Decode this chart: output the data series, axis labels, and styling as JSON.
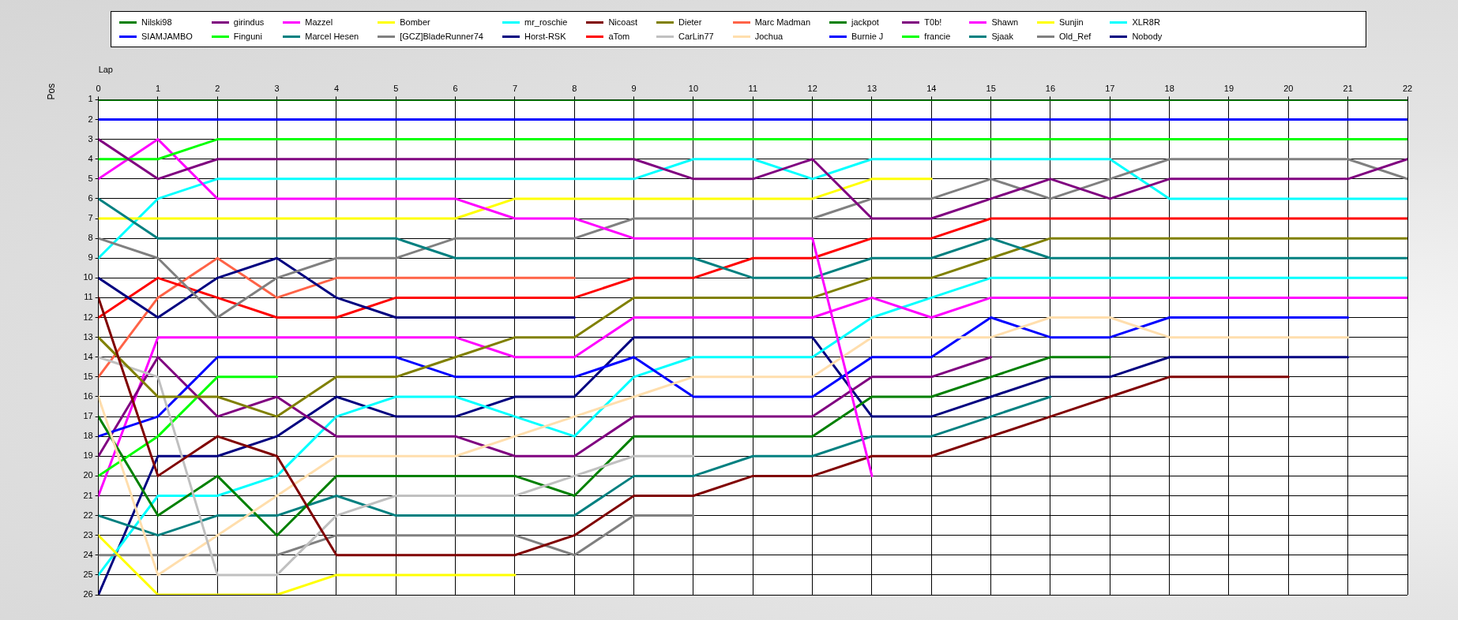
{
  "chart_data": {
    "type": "line",
    "xlabel": "Lap",
    "ylabel": "Pos",
    "x": [
      0,
      1,
      2,
      3,
      4,
      5,
      6,
      7,
      8,
      9,
      10,
      11,
      12,
      13,
      14,
      15,
      16,
      17,
      18,
      19,
      20,
      21,
      22
    ],
    "xlim": [
      0,
      22
    ],
    "xticks": [
      0,
      1,
      2,
      3,
      4,
      5,
      6,
      7,
      8,
      9,
      10,
      11,
      12,
      13,
      14,
      15,
      16,
      17,
      18,
      19,
      20,
      21,
      22
    ],
    "ylim": [
      26,
      1
    ],
    "yticks": [
      1,
      2,
      3,
      4,
      5,
      6,
      7,
      8,
      9,
      10,
      11,
      12,
      13,
      14,
      15,
      16,
      17,
      18,
      19,
      20,
      21,
      22,
      23,
      24,
      25,
      26
    ],
    "grid": true,
    "legend": "top",
    "marker": "none",
    "series": [
      {
        "name": "Nilski98",
        "color": "#008000",
        "values": [
          1,
          1,
          1,
          1,
          1,
          1,
          1,
          1,
          1,
          1,
          1,
          1,
          1,
          1,
          1,
          1,
          1,
          1,
          1,
          1,
          1,
          1,
          1
        ]
      },
      {
        "name": "SIAMJAMBO",
        "color": "#0000ff",
        "values": [
          2,
          2,
          2,
          2,
          2,
          2,
          2,
          2,
          2,
          2,
          2,
          2,
          2,
          2,
          2,
          2,
          2,
          2,
          2,
          2,
          2,
          2,
          2
        ]
      },
      {
        "name": "girindus",
        "color": "#800080",
        "values": [
          3,
          5,
          4,
          4,
          4,
          4,
          4,
          4,
          4,
          4,
          5,
          5,
          4,
          7,
          7,
          6,
          5,
          6,
          5,
          5,
          5,
          5,
          4
        ]
      },
      {
        "name": "Finguni",
        "color": "#00ff00",
        "values": [
          4,
          4,
          3,
          3,
          3,
          3,
          3,
          3,
          3,
          3,
          3,
          3,
          3,
          3,
          3,
          3,
          3,
          3,
          3,
          3,
          3,
          3,
          3
        ]
      },
      {
        "name": "Mazzel",
        "color": "#ff00ff",
        "values": [
          5,
          3,
          6,
          6,
          6,
          6,
          6,
          7,
          7,
          8,
          8,
          8,
          8,
          20,
          null,
          null,
          null,
          null,
          null,
          null,
          null,
          null,
          null
        ]
      },
      {
        "name": "Marcel Hesen",
        "color": "#008080",
        "values": [
          6,
          8,
          8,
          8,
          8,
          8,
          9,
          9,
          9,
          9,
          9,
          10,
          10,
          9,
          9,
          8,
          9,
          9,
          9,
          9,
          9,
          9,
          9
        ]
      },
      {
        "name": "Bomber",
        "color": "#ffff00",
        "values": [
          7,
          7,
          7,
          7,
          7,
          7,
          7,
          6,
          6,
          6,
          6,
          6,
          6,
          5,
          5,
          null,
          null,
          null,
          null,
          null,
          null,
          null,
          null
        ]
      },
      {
        "name": "[GCZ]BladeRunner74",
        "color": "#808080",
        "values": [
          8,
          9,
          12,
          10,
          9,
          9,
          8,
          8,
          8,
          7,
          7,
          7,
          7,
          6,
          6,
          5,
          6,
          5,
          4,
          4,
          4,
          4,
          5
        ]
      },
      {
        "name": "mr_roschie",
        "color": "#00ffff",
        "values": [
          9,
          6,
          5,
          5,
          5,
          5,
          5,
          5,
          5,
          5,
          4,
          4,
          5,
          4,
          4,
          4,
          4,
          4,
          6,
          6,
          6,
          6,
          6
        ]
      },
      {
        "name": "Horst-RSK",
        "color": "#000080",
        "values": [
          10,
          12,
          10,
          9,
          11,
          12,
          12,
          12,
          12,
          null,
          null,
          null,
          null,
          null,
          null,
          null,
          null,
          null,
          null,
          null,
          null,
          null,
          null
        ]
      },
      {
        "name": "Nicoast",
        "color": "#800000",
        "values": [
          11,
          20,
          18,
          19,
          24,
          24,
          24,
          24,
          23,
          21,
          21,
          20,
          20,
          19,
          19,
          18,
          17,
          16,
          15,
          15,
          15,
          null,
          null
        ]
      },
      {
        "name": "aTom",
        "color": "#ff0000",
        "values": [
          12,
          10,
          11,
          12,
          12,
          11,
          11,
          11,
          11,
          10,
          10,
          9,
          9,
          8,
          8,
          7,
          7,
          7,
          7,
          7,
          7,
          7,
          7
        ]
      },
      {
        "name": "Dieter",
        "color": "#808000",
        "values": [
          13,
          16,
          16,
          17,
          15,
          15,
          14,
          13,
          13,
          11,
          11,
          11,
          11,
          10,
          10,
          9,
          8,
          8,
          8,
          8,
          8,
          8,
          8
        ]
      },
      {
        "name": "CarLin77",
        "color": "#c0c0c0",
        "values": [
          14,
          15,
          25,
          25,
          22,
          21,
          21,
          21,
          20,
          19,
          19,
          null,
          null,
          null,
          null,
          null,
          null,
          null,
          null,
          null,
          null,
          null,
          null
        ]
      },
      {
        "name": "Marc Madman",
        "color": "#ff6347",
        "values": [
          15,
          11,
          9,
          11,
          10,
          10,
          10,
          10,
          10,
          null,
          null,
          null,
          null,
          null,
          null,
          null,
          null,
          null,
          null,
          null,
          null,
          null,
          null
        ]
      },
      {
        "name": "Jochua",
        "color": "#ffdead",
        "values": [
          16,
          25,
          23,
          21,
          19,
          19,
          19,
          18,
          17,
          16,
          15,
          15,
          15,
          13,
          13,
          13,
          12,
          12,
          13,
          13,
          13,
          13,
          null
        ]
      },
      {
        "name": "jackpot",
        "color": "#008000",
        "values": [
          17,
          22,
          20,
          23,
          20,
          20,
          20,
          20,
          21,
          18,
          18,
          18,
          18,
          16,
          16,
          15,
          14,
          14,
          null,
          null,
          null,
          null,
          null
        ]
      },
      {
        "name": "Burnie J",
        "color": "#0000ff",
        "values": [
          18,
          17,
          14,
          14,
          14,
          14,
          15,
          15,
          15,
          14,
          16,
          16,
          16,
          14,
          14,
          12,
          13,
          13,
          12,
          12,
          12,
          12,
          null
        ]
      },
      {
        "name": "T0b!",
        "color": "#800080",
        "values": [
          19,
          14,
          17,
          16,
          18,
          18,
          18,
          19,
          19,
          17,
          17,
          17,
          17,
          15,
          15,
          14,
          null,
          null,
          null,
          null,
          null,
          null,
          null
        ]
      },
      {
        "name": "francie",
        "color": "#00ff00",
        "values": [
          20,
          18,
          15,
          15,
          null,
          null,
          null,
          null,
          null,
          null,
          null,
          null,
          null,
          null,
          null,
          null,
          null,
          null,
          null,
          null,
          null,
          null,
          null
        ]
      },
      {
        "name": "Shawn",
        "color": "#ff00ff",
        "values": [
          21,
          13,
          13,
          13,
          13,
          13,
          13,
          14,
          14,
          12,
          12,
          12,
          12,
          11,
          12,
          11,
          11,
          11,
          11,
          11,
          11,
          11,
          11
        ]
      },
      {
        "name": "Sjaak",
        "color": "#008080",
        "values": [
          22,
          23,
          22,
          22,
          21,
          22,
          22,
          22,
          22,
          20,
          20,
          19,
          19,
          18,
          18,
          17,
          16,
          null,
          null,
          null,
          null,
          null,
          null
        ]
      },
      {
        "name": "Sunjin",
        "color": "#ffff00",
        "values": [
          23,
          26,
          26,
          26,
          25,
          25,
          25,
          25,
          null,
          null,
          null,
          null,
          null,
          null,
          null,
          null,
          null,
          null,
          null,
          null,
          null,
          null,
          null
        ]
      },
      {
        "name": "Old_Ref",
        "color": "#808080",
        "values": [
          24,
          24,
          24,
          24,
          23,
          23,
          23,
          23,
          24,
          22,
          22,
          null,
          null,
          null,
          null,
          null,
          null,
          null,
          null,
          null,
          null,
          null,
          null
        ]
      },
      {
        "name": "XLR8R",
        "color": "#00ffff",
        "values": [
          25,
          21,
          21,
          20,
          17,
          16,
          16,
          17,
          18,
          15,
          14,
          14,
          14,
          12,
          11,
          10,
          10,
          10,
          10,
          10,
          10,
          10,
          10
        ]
      },
      {
        "name": "Nobody",
        "color": "#000080",
        "values": [
          26,
          19,
          19,
          18,
          16,
          17,
          17,
          16,
          16,
          13,
          13,
          13,
          13,
          17,
          17,
          16,
          15,
          15,
          14,
          14,
          14,
          14,
          null
        ]
      }
    ]
  }
}
